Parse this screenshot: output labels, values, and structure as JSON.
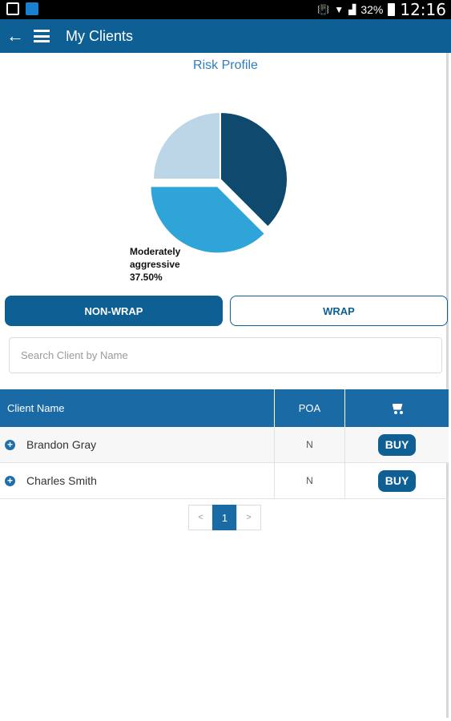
{
  "status_bar": {
    "icons": [
      "image-icon",
      "app-notification-icon",
      "vibrate-icon",
      "wifi-icon",
      "signal-icon",
      "battery-icon"
    ],
    "battery": "32%",
    "time": "12:16"
  },
  "app_bar": {
    "back_icon": "←",
    "title": "My Clients"
  },
  "risk_profile": {
    "title": "Risk Profile",
    "label_line1": "Moderately",
    "label_line2": "aggressive",
    "label_line3": "37.50%"
  },
  "chart_data": {
    "type": "pie",
    "title": "Risk Profile",
    "slices": [
      {
        "label": "",
        "value": 37.5,
        "color": "#0f4a6e"
      },
      {
        "label": "Moderately aggressive",
        "value": 37.5,
        "color": "#2fa4d8",
        "exploded": true
      },
      {
        "label": "",
        "value": 25.0,
        "color": "#bcd6e8"
      }
    ]
  },
  "tabs": {
    "nonwrap": "NON-WRAP",
    "wrap": "WRAP",
    "active": "NON-WRAP"
  },
  "search": {
    "placeholder": "Search Client by Name",
    "value": ""
  },
  "table": {
    "headers": [
      "Client Name",
      "POA",
      "cart-icon"
    ],
    "rows": [
      {
        "name": "Brandon Gray",
        "poa": "N",
        "action": "BUY"
      },
      {
        "name": "Charles Smith",
        "poa": "N",
        "action": "BUY"
      }
    ]
  },
  "pagination": {
    "prev": "<",
    "current": "1",
    "next": ">"
  },
  "colors": {
    "primary": "#0d5f94",
    "header": "#1a6aa6",
    "accent_text": "#2d7fc0"
  }
}
